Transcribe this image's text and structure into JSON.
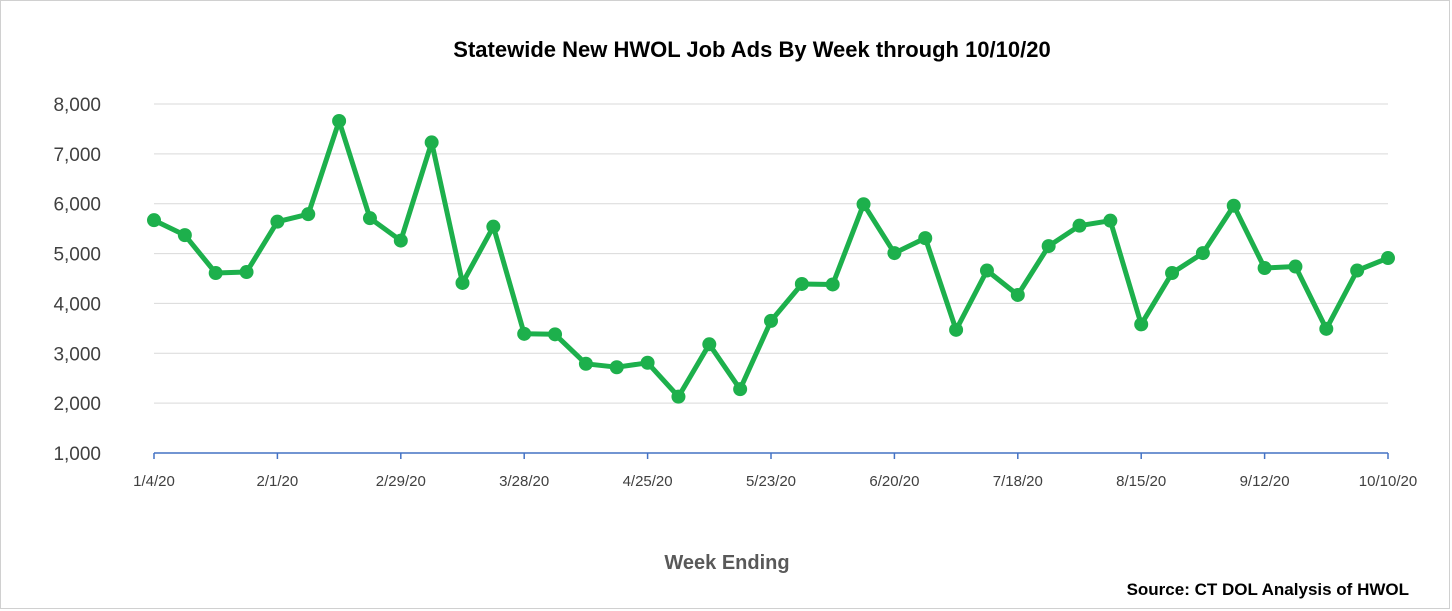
{
  "chart_data": {
    "type": "line",
    "title": "Statewide New HWOL Job Ads By Week through 10/10/20",
    "xlabel": "Week Ending",
    "ylabel": "",
    "source": "Source: CT DOL Analysis of HWOL",
    "ylim": [
      1000,
      8000
    ],
    "yticks": [
      "1,000",
      "2,000",
      "3,000",
      "4,000",
      "5,000",
      "6,000",
      "7,000",
      "8,000"
    ],
    "xtick_labels": [
      "1/4/20",
      "2/1/20",
      "2/29/20",
      "3/28/20",
      "4/25/20",
      "5/23/20",
      "6/20/20",
      "7/18/20",
      "8/15/20",
      "9/12/20",
      "10/10/20"
    ],
    "grid": true,
    "legend": "none",
    "colors": {
      "line": "#1db04c",
      "grid": "#d9d9d9",
      "axis": "#4472c4"
    },
    "x": [
      "1/4/20",
      "1/11/20",
      "1/18/20",
      "1/25/20",
      "2/1/20",
      "2/8/20",
      "2/15/20",
      "2/22/20",
      "2/29/20",
      "3/7/20",
      "3/14/20",
      "3/21/20",
      "3/28/20",
      "4/4/20",
      "4/11/20",
      "4/18/20",
      "4/25/20",
      "5/2/20",
      "5/9/20",
      "5/16/20",
      "5/23/20",
      "5/30/20",
      "6/6/20",
      "6/13/20",
      "6/20/20",
      "6/27/20",
      "7/4/20",
      "7/11/20",
      "7/18/20",
      "7/25/20",
      "8/1/20",
      "8/8/20",
      "8/15/20",
      "8/22/20",
      "8/29/20",
      "9/5/20",
      "9/12/20",
      "9/19/20",
      "9/26/20",
      "10/3/20",
      "10/10/20"
    ],
    "series": [
      {
        "values": [
          5670,
          5370,
          4610,
          4630,
          5640,
          5790,
          7660,
          5710,
          5260,
          7230,
          4410,
          5540,
          3390,
          3380,
          2790,
          2720,
          2810,
          2130,
          3180,
          2280,
          3650,
          4390,
          4380,
          5990,
          5010,
          5310,
          3470,
          4660,
          4170,
          5150,
          5560,
          5660,
          3580,
          4610,
          5010,
          5960,
          4710,
          4740,
          3490,
          4660,
          4910
        ]
      }
    ]
  }
}
